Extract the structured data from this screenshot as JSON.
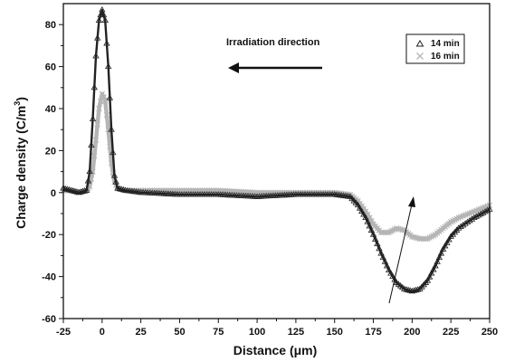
{
  "chart_data": {
    "type": "scatter",
    "xlabel": "Distance (μm)",
    "ylabel_main": "Charge density  (C/m",
    "ylabel_sup": "3",
    "ylabel_close": ")",
    "xlim": [
      -25,
      250
    ],
    "ylim": [
      -60,
      90
    ],
    "x_ticks": [
      -25,
      0,
      25,
      50,
      75,
      100,
      125,
      150,
      175,
      200,
      225,
      250
    ],
    "y_ticks": [
      -60,
      -40,
      -20,
      0,
      20,
      40,
      60,
      80
    ],
    "annotation": "Irradiation direction",
    "legend_position": "top-right",
    "series": [
      {
        "name": "14 min",
        "marker": "triangle-open",
        "color": "#222222",
        "x": [
          -25,
          -20,
          -15,
          -10,
          -8,
          -6,
          -4,
          -2,
          0,
          2,
          4,
          6,
          8,
          10,
          15,
          25,
          50,
          75,
          100,
          125,
          150,
          160,
          165,
          170,
          175,
          180,
          185,
          190,
          195,
          200,
          205,
          210,
          215,
          220,
          225,
          230,
          240,
          250
        ],
        "y": [
          2,
          1,
          0,
          1,
          10,
          35,
          65,
          82,
          87,
          82,
          60,
          30,
          8,
          2,
          1,
          0,
          -1,
          -1,
          -2,
          -1,
          -1,
          -2,
          -6,
          -12,
          -20,
          -29,
          -37,
          -43,
          -46,
          -47,
          -46,
          -42,
          -35,
          -27,
          -21,
          -17,
          -12,
          -8
        ]
      },
      {
        "name": "16 min",
        "marker": "cross",
        "color": "#b5b5b5",
        "x": [
          -25,
          -20,
          -15,
          -10,
          -8,
          -6,
          -4,
          -2,
          0,
          2,
          4,
          6,
          8,
          10,
          15,
          25,
          50,
          75,
          100,
          125,
          150,
          160,
          165,
          170,
          175,
          180,
          185,
          190,
          195,
          200,
          205,
          210,
          215,
          220,
          225,
          230,
          240,
          250
        ],
        "y": [
          1,
          1,
          0,
          1,
          3,
          10,
          25,
          40,
          47,
          44,
          30,
          14,
          5,
          2,
          1,
          1,
          1,
          1,
          0,
          0,
          0,
          -1,
          -4,
          -9,
          -15,
          -19,
          -19,
          -17,
          -18,
          -21,
          -22,
          -22,
          -20,
          -17,
          -14,
          -12,
          -9,
          -6
        ]
      }
    ]
  }
}
